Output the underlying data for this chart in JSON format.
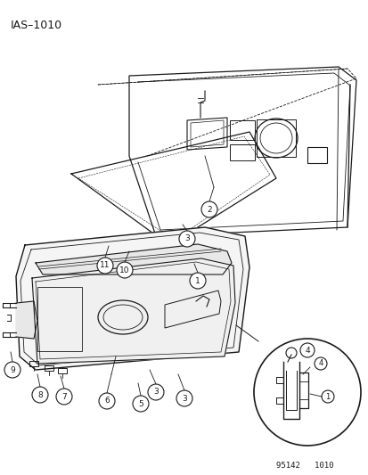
{
  "title": "IAS–1010",
  "bg_color": "#ffffff",
  "line_color": "#1a1a1a",
  "footer_text": "95142   1010",
  "fig_width": 4.14,
  "fig_height": 5.33,
  "dpi": 100
}
